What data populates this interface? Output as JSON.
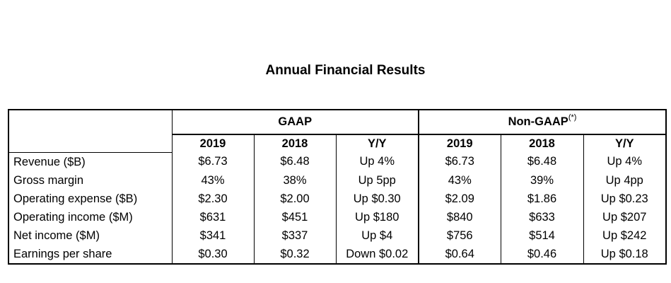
{
  "title": "Annual Financial Results",
  "groups": {
    "gaap": "GAAP",
    "non_gaap": "Non-GAAP",
    "non_gaap_note": "(*)"
  },
  "columns": {
    "gaap": [
      "2019",
      "2018",
      "Y/Y"
    ],
    "non_gaap": [
      "2019",
      "2018",
      "Y/Y"
    ]
  },
  "rows": [
    {
      "metric": "Revenue ($B)",
      "gaap": [
        "$6.73",
        "$6.48",
        "Up 4%"
      ],
      "non_gaap": [
        "$6.73",
        "$6.48",
        "Up 4%"
      ]
    },
    {
      "metric": "Gross margin",
      "gaap": [
        "43%",
        "38%",
        "Up 5pp"
      ],
      "non_gaap": [
        "43%",
        "39%",
        "Up 4pp"
      ]
    },
    {
      "metric": "Operating expense ($B)",
      "gaap": [
        "$2.30",
        "$2.00",
        "Up $0.30"
      ],
      "non_gaap": [
        "$2.09",
        "$1.86",
        "Up $0.23"
      ]
    },
    {
      "metric": "Operating income ($M)",
      "gaap": [
        "$631",
        "$451",
        "Up $180"
      ],
      "non_gaap": [
        "$840",
        "$633",
        "Up $207"
      ]
    },
    {
      "metric": "Net income ($M)",
      "gaap": [
        "$341",
        "$337",
        "Up $4"
      ],
      "non_gaap": [
        "$756",
        "$514",
        "Up $242"
      ]
    },
    {
      "metric": "Earnings per share",
      "gaap": [
        "$0.30",
        "$0.32",
        "Down $0.02"
      ],
      "non_gaap": [
        "$0.64",
        "$0.46",
        "Up $0.18"
      ]
    }
  ]
}
